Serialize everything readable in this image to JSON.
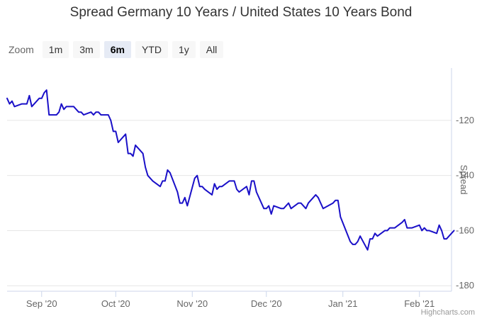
{
  "chart_data": {
    "type": "line",
    "title": "Spread Germany 10 Years / United States 10 Years Bond",
    "zoom": {
      "label": "Zoom",
      "buttons": [
        "1m",
        "3m",
        "6m",
        "YTD",
        "1y",
        "All"
      ],
      "selected": "6m"
    },
    "xlabel": "",
    "ylabel": "Spread",
    "x_ticks": [
      "Sep '20",
      "Oct '20",
      "Nov '20",
      "Dec '20",
      "Jan '21",
      "Feb '21"
    ],
    "y_ticks": [
      "-120",
      "-140",
      "-160",
      "-180"
    ],
    "y_tick_values": [
      -120,
      -140,
      -160,
      -180
    ],
    "ylim": [
      -182,
      -101
    ],
    "x_domain": [
      "2020-08-18",
      "2021-02-14"
    ],
    "grid": true,
    "line_color": "#1a10c8",
    "grid_color": "#e6e6e6",
    "series": [
      {
        "name": "Spread",
        "x": [
          "2020-08-18",
          "2020-08-19",
          "2020-08-20",
          "2020-08-21",
          "2020-08-24",
          "2020-08-25",
          "2020-08-26",
          "2020-08-27",
          "2020-08-28",
          "2020-08-31",
          "2020-09-01",
          "2020-09-02",
          "2020-09-03",
          "2020-09-04",
          "2020-09-07",
          "2020-09-08",
          "2020-09-09",
          "2020-09-10",
          "2020-09-11",
          "2020-09-14",
          "2020-09-15",
          "2020-09-16",
          "2020-09-17",
          "2020-09-18",
          "2020-09-21",
          "2020-09-22",
          "2020-09-23",
          "2020-09-24",
          "2020-09-25",
          "2020-09-28",
          "2020-09-29",
          "2020-09-30",
          "2020-10-01",
          "2020-10-02",
          "2020-10-05",
          "2020-10-06",
          "2020-10-07",
          "2020-10-08",
          "2020-10-09",
          "2020-10-12",
          "2020-10-13",
          "2020-10-14",
          "2020-10-15",
          "2020-10-16",
          "2020-10-19",
          "2020-10-20",
          "2020-10-21",
          "2020-10-22",
          "2020-10-23",
          "2020-10-26",
          "2020-10-27",
          "2020-10-28",
          "2020-10-29",
          "2020-10-30",
          "2020-11-02",
          "2020-11-03",
          "2020-11-04",
          "2020-11-05",
          "2020-11-06",
          "2020-11-09",
          "2020-11-10",
          "2020-11-11",
          "2020-11-12",
          "2020-11-13",
          "2020-11-16",
          "2020-11-17",
          "2020-11-18",
          "2020-11-19",
          "2020-11-20",
          "2020-11-23",
          "2020-11-24",
          "2020-11-25",
          "2020-11-26",
          "2020-11-27",
          "2020-11-30",
          "2020-12-01",
          "2020-12-02",
          "2020-12-03",
          "2020-12-04",
          "2020-12-07",
          "2020-12-08",
          "2020-12-09",
          "2020-12-10",
          "2020-12-11",
          "2020-12-14",
          "2020-12-15",
          "2020-12-16",
          "2020-12-17",
          "2020-12-18",
          "2020-12-21",
          "2020-12-22",
          "2020-12-23",
          "2020-12-24",
          "2020-12-28",
          "2020-12-29",
          "2020-12-30",
          "2020-12-31",
          "2021-01-04",
          "2021-01-05",
          "2021-01-06",
          "2021-01-07",
          "2021-01-08",
          "2021-01-11",
          "2021-01-12",
          "2021-01-13",
          "2021-01-14",
          "2021-01-15",
          "2021-01-18",
          "2021-01-19",
          "2021-01-20",
          "2021-01-21",
          "2021-01-22",
          "2021-01-25",
          "2021-01-26",
          "2021-01-27",
          "2021-01-28",
          "2021-01-29",
          "2021-02-01",
          "2021-02-02",
          "2021-02-03",
          "2021-02-04",
          "2021-02-05",
          "2021-02-08",
          "2021-02-09",
          "2021-02-10",
          "2021-02-11",
          "2021-02-12",
          "2021-02-15"
        ],
        "values": [
          -112,
          -114,
          -113,
          -115,
          -114,
          -114,
          -114,
          -111,
          -115,
          -112,
          -112,
          -110,
          -109,
          -118,
          -118,
          -117,
          -114,
          -116,
          -115,
          -115,
          -116,
          -117,
          -117,
          -118,
          -117,
          -118,
          -117,
          -117,
          -118,
          -118,
          -120,
          -124,
          -124,
          -128,
          -125,
          -132,
          -132,
          -133,
          -129,
          -132,
          -137,
          -140,
          -141,
          -142,
          -144,
          -142,
          -142,
          -138,
          -139,
          -146,
          -150,
          -150,
          -148,
          -151,
          -141,
          -140,
          -144,
          -144,
          -145,
          -147,
          -143,
          -145,
          -144,
          -144,
          -142,
          -142,
          -142,
          -145,
          -146,
          -144,
          -147,
          -142,
          -142,
          -146,
          -152,
          -152,
          -151,
          -154,
          -151,
          -152,
          -152,
          -151,
          -150,
          -152,
          -150,
          -150,
          -151,
          -152,
          -150,
          -147,
          -148,
          -150,
          -152,
          -150,
          -149,
          -149,
          -155,
          -164,
          -165,
          -165,
          -164,
          -162,
          -167,
          -163,
          -163,
          -161,
          -162,
          -160,
          -160,
          -159,
          -159,
          -159,
          -157,
          -156,
          -159,
          -159,
          -159,
          -158,
          -160,
          -159,
          -160,
          -160,
          -161,
          -158,
          -160,
          -163,
          -163,
          -160
        ]
      }
    ]
  },
  "credit": "Highcharts.com"
}
